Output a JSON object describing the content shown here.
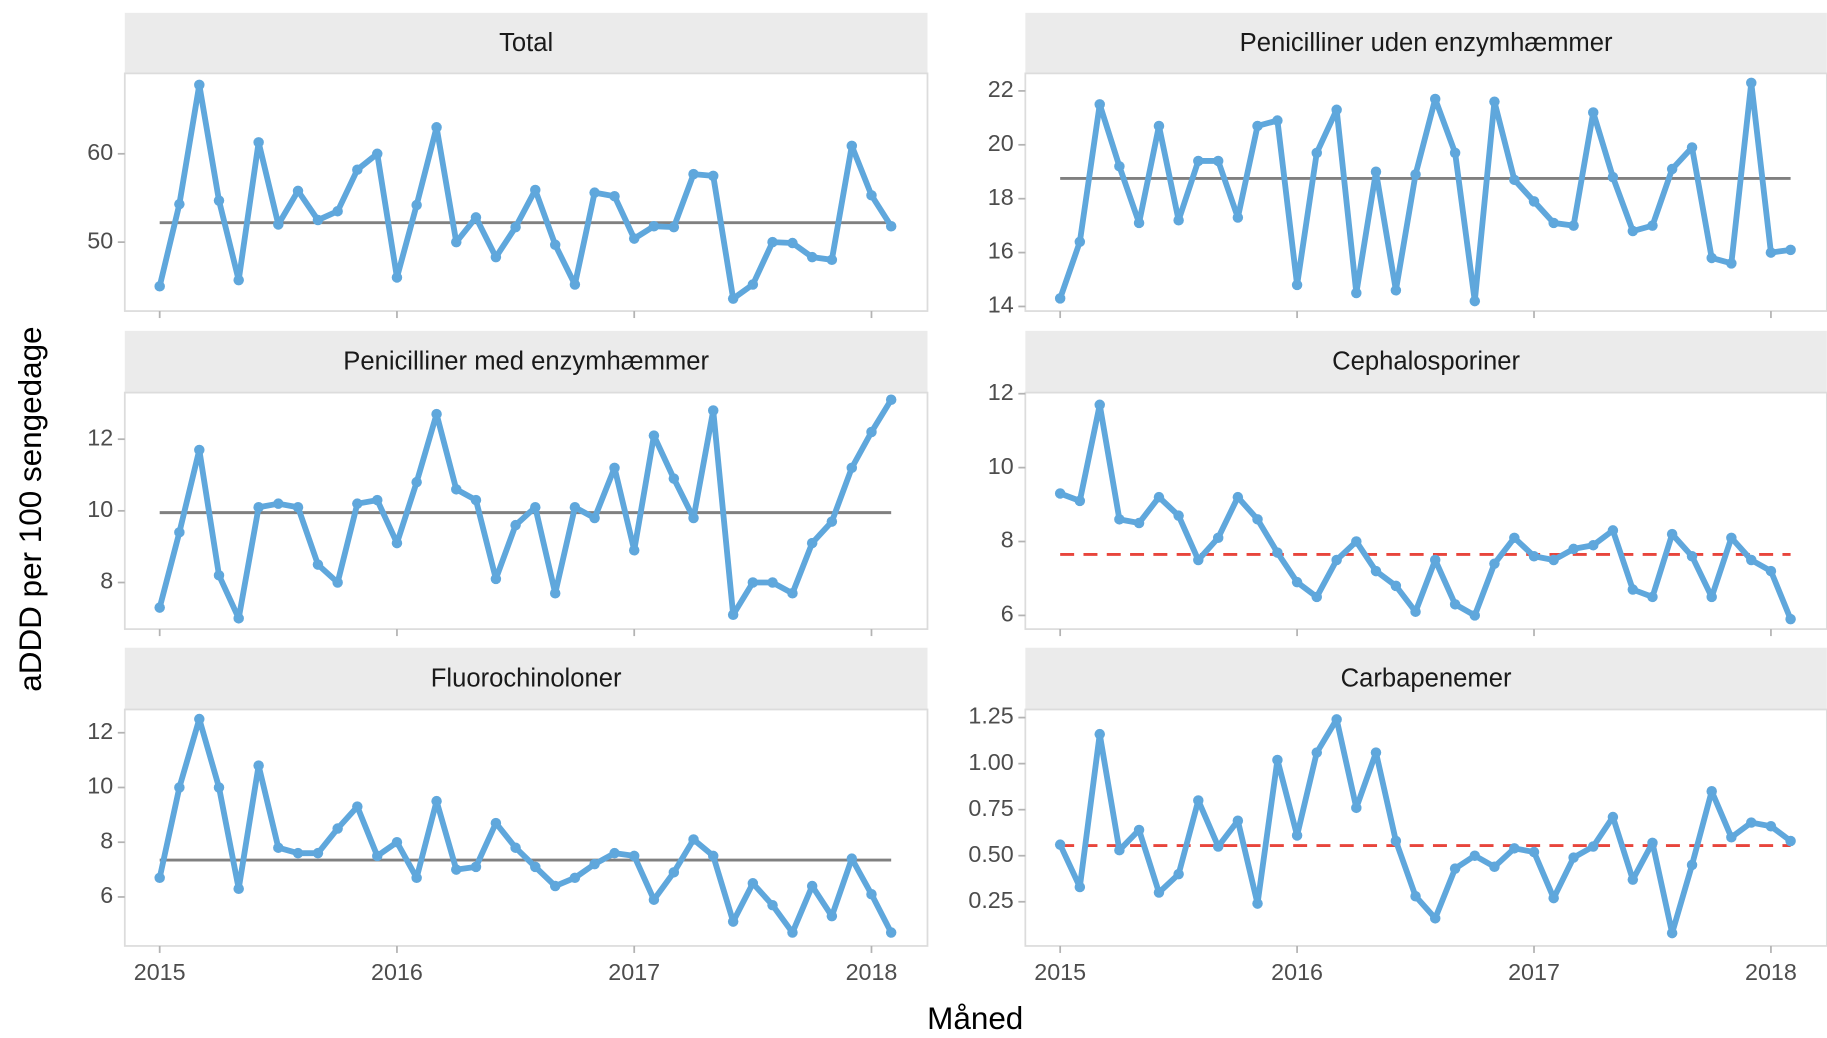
{
  "chart_data": {
    "type": "line",
    "xlabel": "Måned",
    "ylabel": "aDDD per 100 sengedage",
    "x": [
      2015,
      2015.083,
      2015.167,
      2015.25,
      2015.333,
      2015.417,
      2015.5,
      2015.583,
      2015.667,
      2015.75,
      2015.833,
      2015.917,
      2016,
      2016.083,
      2016.167,
      2016.25,
      2016.333,
      2016.417,
      2016.5,
      2016.583,
      2016.667,
      2016.75,
      2016.833,
      2016.917,
      2017,
      2017.083,
      2017.167,
      2017.25,
      2017.333,
      2017.417,
      2017.5,
      2017.583,
      2017.667,
      2017.75,
      2017.833,
      2017.917,
      2018,
      2018.083
    ],
    "xlim": [
      2014.853,
      2018.236
    ],
    "xticks": [
      2015,
      2016,
      2017,
      2018
    ],
    "color": "#5fa7dc",
    "facets": [
      {
        "title": "Total",
        "ylim": [
          42.2,
          69.1
        ],
        "yticks": [
          50,
          60
        ],
        "reference": {
          "value": 52.2,
          "style": "solid",
          "color": "#808080"
        },
        "values": [
          45,
          54.3,
          67.8,
          54.7,
          45.7,
          61.3,
          52,
          55.8,
          52.5,
          53.5,
          58.2,
          60,
          46,
          54.2,
          63,
          50,
          52.8,
          48.3,
          51.7,
          55.9,
          49.7,
          45.2,
          55.6,
          55.2,
          50.4,
          51.8,
          51.7,
          57.7,
          57.5,
          43.6,
          45.2,
          50,
          49.9,
          48.3,
          48,
          60.9,
          55.3,
          51.8
        ]
      },
      {
        "title": "Penicilliner uden enzymhæmmer",
        "ylim": [
          13.83,
          22.65
        ],
        "yticks": [
          14,
          16,
          18,
          20,
          22
        ],
        "reference": {
          "value": 18.75,
          "style": "solid",
          "color": "#808080"
        },
        "values": [
          14.3,
          16.4,
          21.5,
          19.2,
          17.1,
          20.7,
          17.2,
          19.4,
          19.4,
          17.3,
          20.7,
          20.9,
          14.8,
          19.7,
          21.3,
          14.5,
          19,
          14.6,
          18.9,
          21.7,
          19.7,
          14.2,
          21.6,
          18.7,
          17.9,
          17.1,
          17,
          21.2,
          18.8,
          16.8,
          17,
          19.1,
          19.9,
          15.8,
          15.6,
          22.3,
          16,
          16.1
        ]
      },
      {
        "title": "Penicilliner med enzymhæmmer",
        "ylim": [
          6.7,
          13.3
        ],
        "yticks": [
          8,
          10,
          12
        ],
        "reference": {
          "value": 9.95,
          "style": "solid",
          "color": "#808080"
        },
        "values": [
          7.3,
          9.4,
          11.7,
          8.2,
          7,
          10.1,
          10.2,
          10.1,
          8.5,
          8,
          10.2,
          10.3,
          9.1,
          10.8,
          12.7,
          10.6,
          10.3,
          8.1,
          9.6,
          10.1,
          7.7,
          10.1,
          9.8,
          11.2,
          8.9,
          12.1,
          10.9,
          9.8,
          12.8,
          7.1,
          8,
          8,
          7.7,
          9.1,
          9.7,
          11.2,
          12.2,
          13.1
        ]
      },
      {
        "title": "Cephalosporiner",
        "ylim": [
          5.63,
          12.03
        ],
        "yticks": [
          6,
          8,
          10,
          12
        ],
        "reference": {
          "value": 7.65,
          "style": "dashed",
          "color": "#e8453c"
        },
        "values": [
          9.3,
          9.1,
          11.7,
          8.6,
          8.5,
          9.2,
          8.7,
          7.5,
          8.1,
          9.2,
          8.6,
          7.7,
          6.9,
          6.5,
          7.5,
          8,
          7.2,
          6.8,
          6.1,
          7.5,
          6.3,
          6,
          7.4,
          8.1,
          7.6,
          7.5,
          7.8,
          7.9,
          8.3,
          6.7,
          6.5,
          8.2,
          7.6,
          6.5,
          8.1,
          7.5,
          7.2,
          5.9
        ]
      },
      {
        "title": "Fluorochinoloner",
        "ylim": [
          4.21,
          12.85
        ],
        "yticks": [
          6,
          8,
          10,
          12
        ],
        "reference": {
          "value": 7.35,
          "style": "solid",
          "color": "#808080"
        },
        "values": [
          6.7,
          10,
          12.5,
          10,
          6.3,
          10.8,
          7.8,
          7.6,
          7.6,
          8.5,
          9.3,
          7.5,
          8,
          6.7,
          9.5,
          7,
          7.1,
          8.7,
          7.8,
          7.1,
          6.4,
          6.7,
          7.2,
          7.6,
          7.5,
          5.9,
          6.9,
          8.1,
          7.5,
          5.1,
          6.5,
          5.7,
          4.7,
          6.4,
          5.3,
          7.4,
          6.1,
          4.7
        ]
      },
      {
        "title": "Carbapenemer",
        "ylim": [
          0.01,
          1.294
        ],
        "yticks": [
          {
            "value": 0.25,
            "label": "0.25"
          },
          {
            "value": 0.5,
            "label": "0.50"
          },
          {
            "value": 0.75,
            "label": "0.75"
          },
          {
            "value": 1,
            "label": "1.00"
          },
          {
            "value": 1.25,
            "label": "1.25"
          }
        ],
        "reference": {
          "value": 0.555,
          "style": "dashed",
          "color": "#e8453c"
        },
        "values": [
          0.56,
          0.33,
          1.16,
          0.53,
          0.64,
          0.3,
          0.4,
          0.8,
          0.55,
          0.69,
          0.24,
          1.02,
          0.61,
          1.06,
          1.24,
          0.76,
          1.06,
          0.58,
          0.28,
          0.16,
          0.43,
          0.5,
          0.44,
          0.54,
          0.52,
          0.27,
          0.49,
          0.55,
          0.71,
          0.37,
          0.57,
          0.08,
          0.45,
          0.85,
          0.6,
          0.68,
          0.66,
          0.58
        ]
      }
    ]
  }
}
